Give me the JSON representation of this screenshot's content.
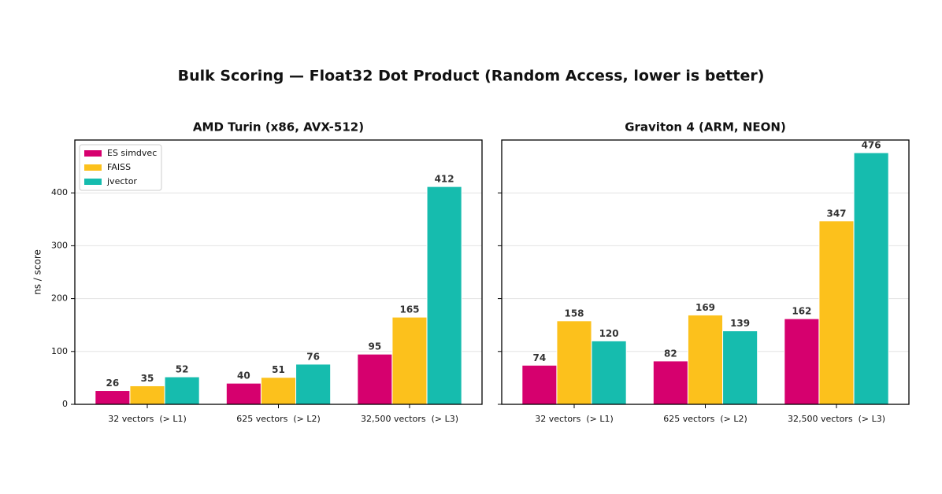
{
  "title": "Bulk Scoring — Float32 Dot Product (Random Access, lower is better)",
  "chart_data": [
    {
      "type": "bar",
      "title": "AMD Turin (x86, AVX-512)",
      "y_label": "ns / score",
      "categories": [
        "32 vectors  (> L1)",
        "625 vectors  (> L2)",
        "32,500 vectors  (> L3)"
      ],
      "series": [
        {
          "name": "ES simdvec",
          "color": "#d6006e",
          "values": [
            26,
            40,
            95
          ]
        },
        {
          "name": "FAISS",
          "color": "#fcc11c",
          "values": [
            35,
            51,
            165
          ]
        },
        {
          "name": "jvector",
          "color": "#16bcae",
          "values": [
            52,
            76,
            412
          ]
        }
      ],
      "ylim": [
        0,
        500
      ],
      "yticks": [
        0,
        100,
        200,
        300,
        400
      ],
      "grid": true,
      "legend": "upper left"
    },
    {
      "type": "bar",
      "title": "Graviton 4 (ARM, NEON)",
      "categories": [
        "32 vectors  (> L1)",
        "625 vectors  (> L2)",
        "32,500 vectors  (> L3)"
      ],
      "series": [
        {
          "color": "#d6006e",
          "values": [
            74,
            82,
            162
          ]
        },
        {
          "color": "#fcc11c",
          "values": [
            158,
            169,
            347
          ]
        },
        {
          "color": "#16bcae",
          "values": [
            120,
            139,
            476
          ]
        }
      ],
      "ylim": [
        0,
        500
      ],
      "yticks": [
        0,
        100,
        200,
        300,
        400
      ],
      "grid": true
    }
  ]
}
